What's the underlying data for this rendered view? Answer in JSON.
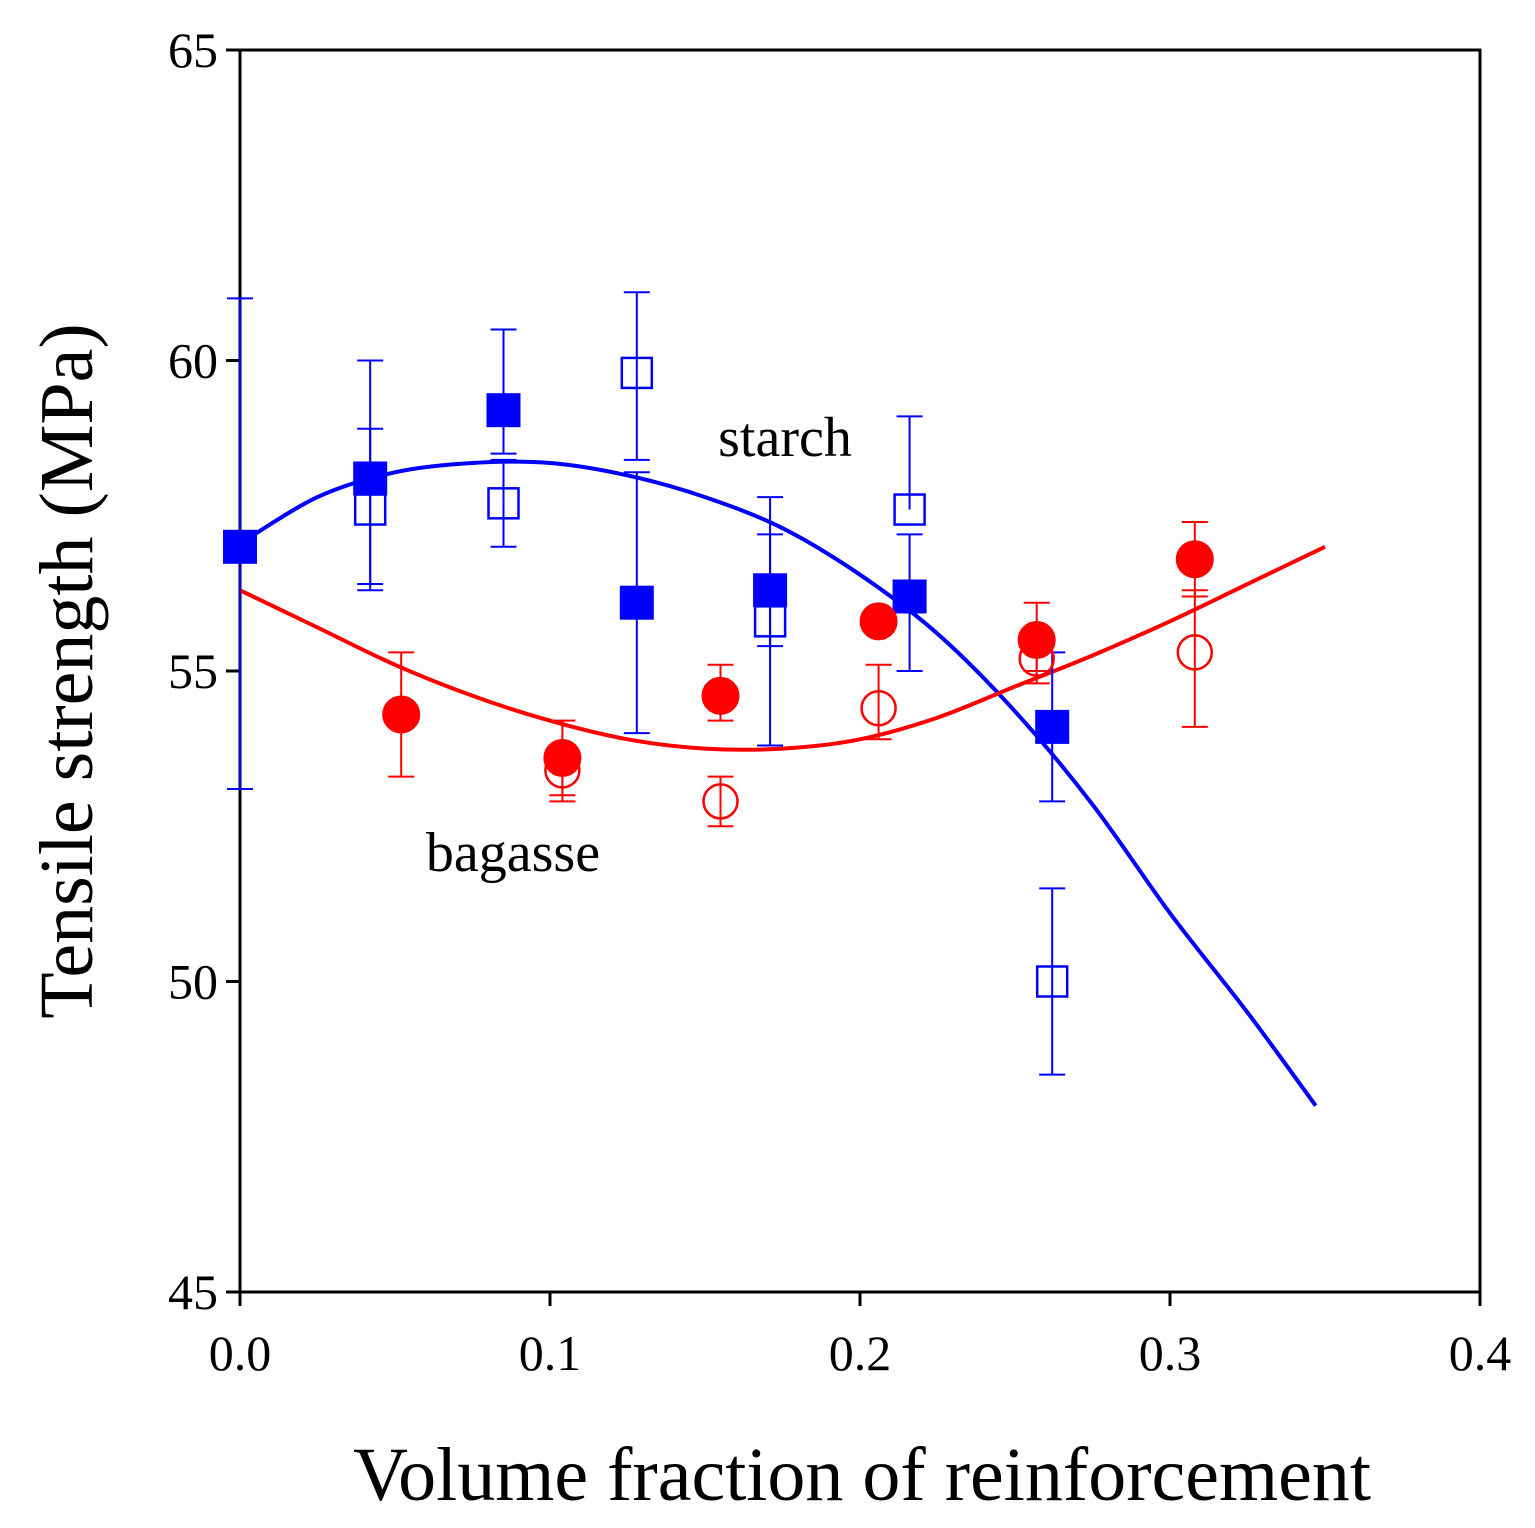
{
  "chart_data": {
    "type": "scatter",
    "title": "",
    "xlabel": "Volume fraction of reinforcement",
    "ylabel": "Tensile strength (MPa)",
    "xlim": [
      0.0,
      0.4
    ],
    "ylim": [
      45,
      65
    ],
    "xticks": [
      0.0,
      0.1,
      0.2,
      0.3,
      0.4
    ],
    "xtick_labels": [
      "0.0",
      "0.1",
      "0.2",
      "0.3",
      "0.4"
    ],
    "yticks": [
      45,
      50,
      55,
      60,
      65
    ],
    "ytick_labels": [
      "45",
      "50",
      "55",
      "60",
      "65"
    ],
    "grid": false,
    "colors": {
      "starch": "#0000ff",
      "bagasse": "#ff0000",
      "axis": "#000000"
    },
    "annotations": [
      {
        "text": "starch",
        "x": 0.175,
        "y": 58.6
      },
      {
        "text": "bagasse",
        "x": 0.087,
        "y": 52.1
      }
    ],
    "series": [
      {
        "name": "starch filled",
        "group": "starch",
        "marker": "square-filled",
        "x": [
          0.0,
          0.042,
          0.085,
          0.128,
          0.171,
          0.216,
          0.262
        ],
        "y": [
          57.0,
          58.1,
          59.2,
          56.1,
          56.3,
          56.2,
          54.1
        ],
        "err_low": [
          53.1,
          56.4,
          58.5,
          54.0,
          53.8,
          55.0,
          52.9
        ],
        "err_high": [
          61.0,
          60.0,
          60.5,
          58.2,
          57.8,
          57.2,
          55.3
        ]
      },
      {
        "name": "starch open",
        "group": "starch",
        "marker": "square-open",
        "x": [
          0.042,
          0.085,
          0.128,
          0.171,
          0.216,
          0.262
        ],
        "y": [
          57.6,
          57.7,
          59.8,
          55.8,
          57.6,
          50.0
        ],
        "err_low": [
          56.3,
          57.0,
          58.4,
          55.4,
          null,
          48.5
        ],
        "err_high": [
          58.9,
          58.4,
          61.1,
          57.2,
          59.1,
          51.5
        ]
      },
      {
        "name": "bagasse filled",
        "group": "bagasse",
        "marker": "circle-filled",
        "x": [
          0.052,
          0.104,
          0.155,
          0.206,
          0.257,
          0.308
        ],
        "y": [
          54.3,
          53.6,
          54.6,
          55.8,
          55.5,
          56.8
        ],
        "err_low": [
          53.3,
          53.0,
          54.2,
          null,
          55.0,
          56.2
        ],
        "err_high": [
          55.3,
          54.2,
          55.1,
          null,
          56.1,
          57.4
        ]
      },
      {
        "name": "bagasse open",
        "group": "bagasse",
        "marker": "circle-open",
        "x": [
          0.104,
          0.155,
          0.206,
          0.257,
          0.308
        ],
        "y": [
          53.4,
          52.9,
          54.4,
          55.2,
          55.3
        ],
        "err_low": [
          52.9,
          52.5,
          53.9,
          54.8,
          54.1
        ],
        "err_high": [
          null,
          53.3,
          55.1,
          null,
          56.3
        ]
      },
      {
        "name": "starch fit",
        "group": "starch",
        "marker": "line",
        "x": [
          0.0,
          0.025,
          0.05,
          0.075,
          0.1,
          0.125,
          0.15,
          0.175,
          0.2,
          0.225,
          0.25,
          0.275,
          0.3,
          0.325,
          0.347
        ],
        "y": [
          57.05,
          57.8,
          58.2,
          58.35,
          58.35,
          58.15,
          57.8,
          57.3,
          56.55,
          55.6,
          54.35,
          52.85,
          51.1,
          49.5,
          48.0
        ]
      },
      {
        "name": "bagasse fit",
        "group": "bagasse",
        "marker": "line",
        "x": [
          0.0,
          0.025,
          0.05,
          0.075,
          0.1,
          0.125,
          0.15,
          0.175,
          0.2,
          0.225,
          0.25,
          0.275,
          0.3,
          0.325,
          0.35
        ],
        "y": [
          56.3,
          55.7,
          55.1,
          54.6,
          54.2,
          53.9,
          53.75,
          53.75,
          53.9,
          54.25,
          54.75,
          55.25,
          55.8,
          56.4,
          57.0
        ]
      }
    ]
  }
}
